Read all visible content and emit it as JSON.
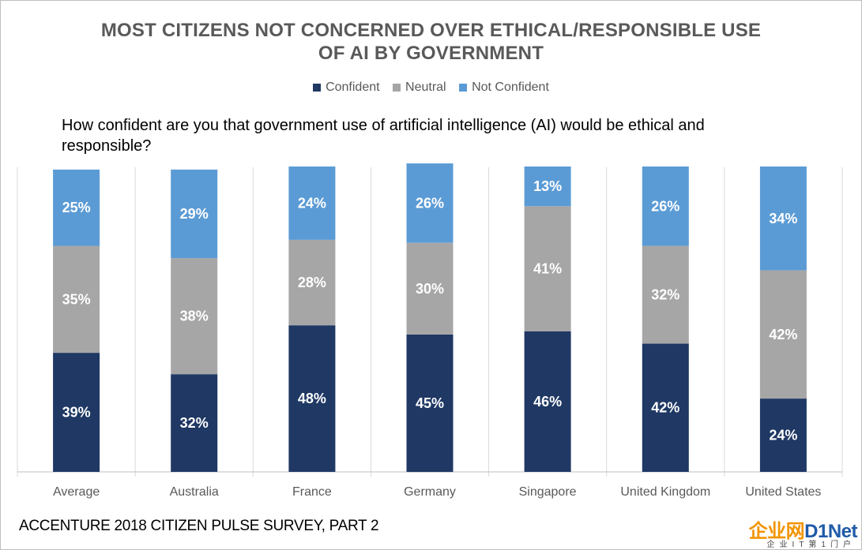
{
  "chart_data": {
    "type": "bar",
    "stacked": true,
    "title": "MOST CITIZENS NOT CONCERNED OVER ETHICAL/RESPONSIBLE USE OF AI BY GOVERNMENT",
    "title_lines": [
      "MOST CITIZENS NOT CONCERNED OVER ETHICAL/RESPONSIBLE USE",
      "OF AI BY GOVERNMENT"
    ],
    "subtitle": "How confident are you that government use of artificial intelligence (AI) would be ethical and responsible?",
    "categories": [
      "Average",
      "Australia",
      "France",
      "Germany",
      "Singapore",
      "United Kingdom",
      "United States"
    ],
    "series": [
      {
        "name": "Confident",
        "color": "#1f3864",
        "values": [
          39,
          32,
          48,
          45,
          46,
          42,
          24
        ]
      },
      {
        "name": "Neutral",
        "color": "#a6a6a6",
        "values": [
          35,
          38,
          28,
          30,
          41,
          32,
          42
        ]
      },
      {
        "name": "Not Confident",
        "color": "#5b9bd5",
        "values": [
          25,
          29,
          24,
          26,
          13,
          26,
          34
        ]
      }
    ],
    "value_suffix": "%",
    "legend_position": "top",
    "grid": false,
    "ylim": [
      0,
      100
    ]
  },
  "source": "ACCENTURE 2018 CITIZEN PULSE SURVEY, PART 2",
  "watermark": {
    "main_cn": "企业网",
    "main_en": "D1Net",
    "sub": "企业IT第1门户"
  }
}
